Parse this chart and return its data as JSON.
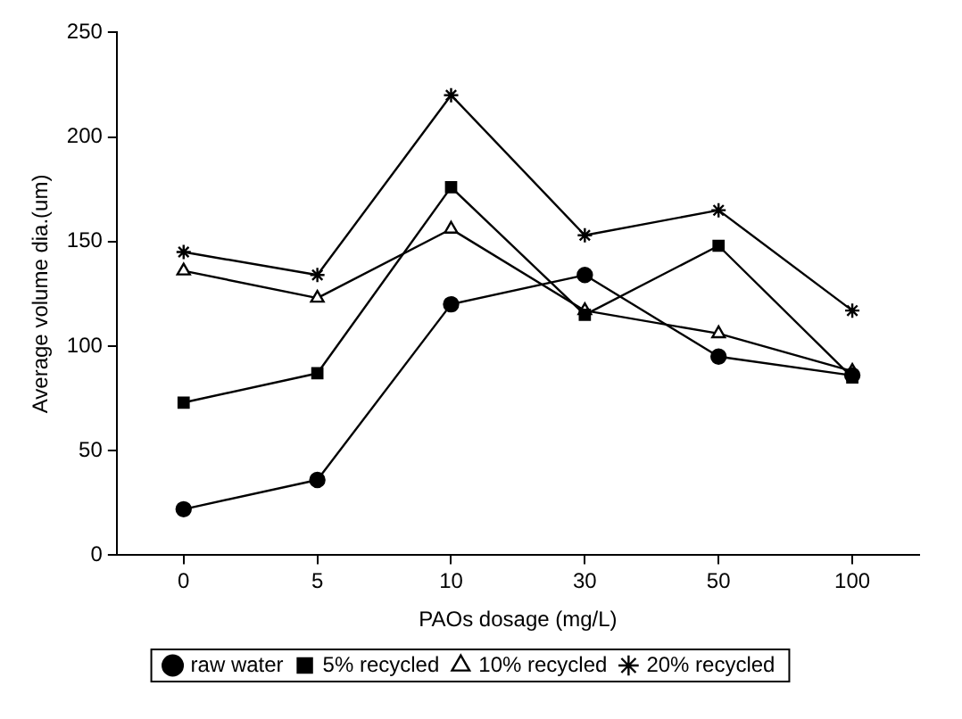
{
  "chart_data": {
    "type": "line",
    "xlabel": "PAOs dosage (mg/L)",
    "ylabel": "Average volume dia.(um)",
    "categories": [
      "0",
      "5",
      "10",
      "30",
      "50",
      "100"
    ],
    "series": [
      {
        "name": "raw water",
        "color": "#000000",
        "marker": "circle",
        "values": [
          22,
          36,
          120,
          134,
          95,
          86
        ]
      },
      {
        "name": "5% recycled",
        "color": "#000000",
        "marker": "square",
        "values": [
          73,
          87,
          176,
          115,
          148,
          85
        ]
      },
      {
        "name": "10% recycled",
        "color": "#000000",
        "marker": "triangle",
        "values": [
          136,
          123,
          156,
          117,
          106,
          88
        ]
      },
      {
        "name": "20% recycled",
        "color": "#000000",
        "marker": "cross",
        "values": [
          145,
          134,
          220,
          153,
          165,
          117
        ]
      }
    ],
    "ylim": [
      0,
      250
    ],
    "yticks": [
      0,
      50,
      100,
      150,
      200,
      250
    ],
    "grid": false,
    "legend": "bottom",
    "line_style": "solid"
  }
}
